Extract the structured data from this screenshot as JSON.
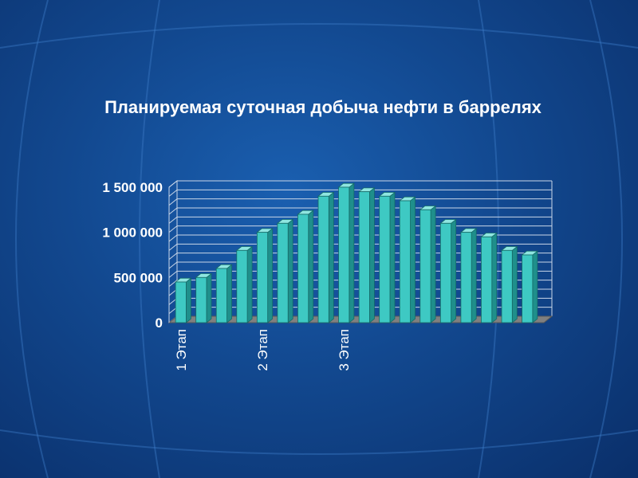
{
  "colors": {
    "bar_front": "#3ec9c3",
    "bar_side": "#1f8f8b",
    "bar_top": "#8fe6e1",
    "floor": "#808080",
    "grid": "#c9d6e8",
    "text": "#ffffff"
  },
  "chart_data": {
    "type": "bar",
    "title": "Планируемая суточная добыча нефти в баррелях",
    "xlabel": "",
    "ylabel": "",
    "ylim": [
      0,
      1500000
    ],
    "yticks": [
      0,
      500000,
      1000000,
      1500000
    ],
    "ytick_labels": [
      "0",
      "500 000",
      "1 000 000",
      "1 500 000"
    ],
    "grid": true,
    "legend": "none",
    "style": "3d-column",
    "categories": [
      "1 Этап",
      "",
      "",
      "",
      "2 Этап",
      "",
      "",
      "",
      "3 Этап",
      "",
      "",
      "",
      "",
      "",
      "",
      "",
      "",
      ""
    ],
    "series": [
      {
        "values": [
          450000,
          500000,
          600000,
          800000,
          1000000,
          1100000,
          1200000,
          1400000,
          1500000,
          1450000,
          1400000,
          1350000,
          1250000,
          1100000,
          1000000,
          950000,
          800000,
          750000
        ]
      }
    ]
  }
}
